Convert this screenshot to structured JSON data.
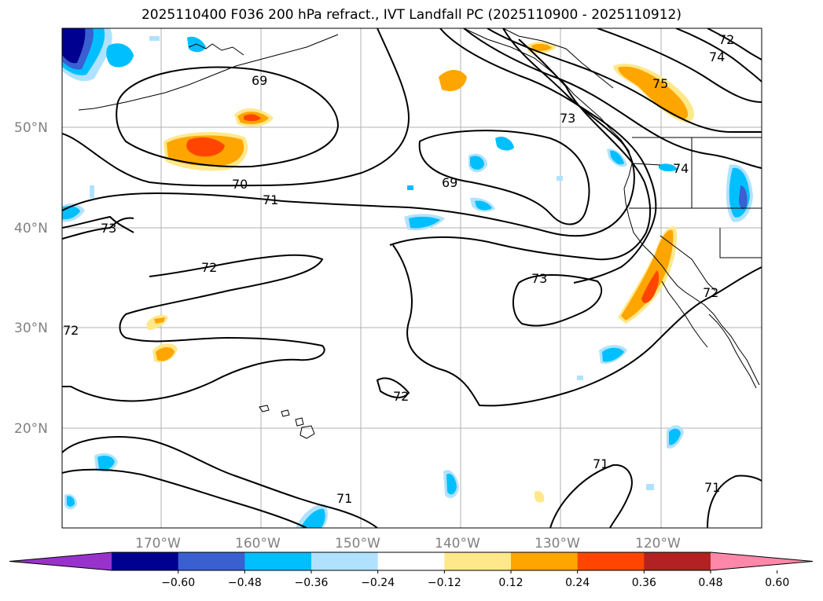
{
  "title": "2025110400 F036 200 hPa refract., IVT Landfall PC (2025110900 - 2025110912)",
  "map": {
    "lat_labels": [
      "50°N",
      "40°N",
      "30°N",
      "20°N"
    ],
    "lon_labels": [
      "170°W",
      "160°W",
      "150°W",
      "140°W",
      "130°W",
      "120°W"
    ],
    "contour_labels": [
      "69",
      "70",
      "71",
      "73",
      "72",
      "72",
      "69",
      "73",
      "72",
      "71",
      "71",
      "73",
      "74",
      "75",
      "74",
      "72",
      "71",
      "72"
    ]
  },
  "colorbar": {
    "ticks": [
      "−0.60",
      "−0.48",
      "−0.36",
      "−0.24",
      "−0.12",
      "0.12",
      "0.24",
      "0.36",
      "0.48",
      "0.60"
    ],
    "colors": [
      "#9932cc",
      "#000090",
      "#3a5fd0",
      "#00bfff",
      "#b0e2ff",
      "#ffffff",
      "#ffe88a",
      "#ffa500",
      "#ff4500",
      "#b22222",
      "#ff88aa"
    ]
  }
}
